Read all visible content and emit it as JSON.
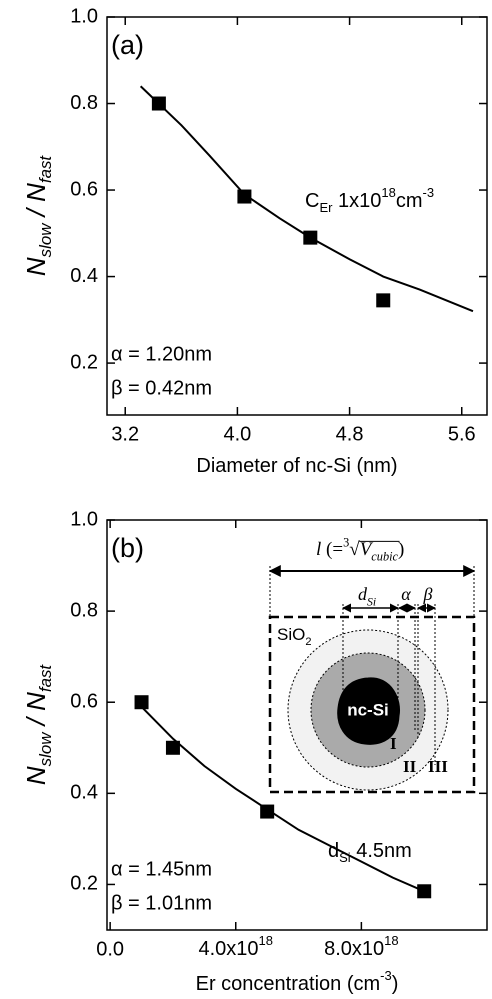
{
  "chart_data": [
    {
      "type": "scatter",
      "panel_label": "(a)",
      "x_label": {
        "text": "Diameter of nc-Si (nm)"
      },
      "y_label": {
        "base": "N",
        "sub": "slow",
        "mid": " / N",
        "sub2": "fast"
      },
      "x": [
        3.44,
        4.05,
        4.52,
        5.04
      ],
      "values": [
        0.8,
        0.585,
        0.49,
        0.345
      ],
      "color": "#000000",
      "fit": {
        "x": [
          3.31,
          3.6,
          3.8,
          4.05,
          4.3,
          4.52,
          4.8,
          5.04,
          5.3,
          5.68
        ],
        "values": [
          0.84,
          0.75,
          0.68,
          0.59,
          0.535,
          0.49,
          0.44,
          0.4,
          0.37,
          0.32
        ]
      },
      "xlim": [
        3.07,
        5.78
      ],
      "xticks": [
        3.2,
        {
          "value": 4,
          "label": "4.0"
        },
        4.8,
        5.6
      ],
      "ylim": [
        0.08,
        1.0
      ],
      "yticks": [
        0.2,
        0.4,
        0.6,
        0.8,
        {
          "value": 1,
          "label": "1.0"
        }
      ],
      "annotations": {
        "alpha": "α = 1.20nm",
        "beta": "β = 0.42nm",
        "conc": {
          "c": "C",
          "er": "Er",
          "num": " 1x10",
          "exp": "18",
          "unit": "cm",
          "uexp": "-3"
        }
      }
    },
    {
      "type": "scatter",
      "panel_label": "(b)",
      "x_label": {
        "text": "Er concentration (cm",
        "sup": "-3",
        "end": ")"
      },
      "y_label": {
        "base": "N",
        "sub": "slow",
        "mid": " / N",
        "sub2": "fast"
      },
      "x": [
        1e+18,
        2e+18,
        5e+18,
        1e+19
      ],
      "values": [
        0.6,
        0.5,
        0.36,
        0.185
      ],
      "color": "#000000",
      "fit": {
        "x": [
          1e+18,
          2e+18,
          3e+18,
          4e+18,
          5e+18,
          6e+18,
          7e+18,
          8e+18,
          9e+18,
          1e+19
        ],
        "values": [
          0.59,
          0.52,
          0.46,
          0.41,
          0.365,
          0.32,
          0.285,
          0.25,
          0.215,
          0.185
        ]
      },
      "xlim": [
        -1e+17,
        1.2e+19
      ],
      "xticks": [
        {
          "value": 0,
          "label": "0.0"
        },
        {
          "value": 4e+18,
          "label": "4.0x10",
          "exponent": "18"
        },
        {
          "value": 8e+18,
          "label": "8.0x10",
          "exponent": "18"
        }
      ],
      "ylim": [
        0.1,
        1.0
      ],
      "yticks": [
        0.2,
        0.4,
        0.6,
        0.8,
        {
          "value": 1,
          "label": "1.0"
        }
      ],
      "annotations": {
        "alpha": "α = 1.45nm",
        "beta": "β = 1.01nm",
        "dsi": {
          "d": "d",
          "si": "Si",
          "val": " 4.5nm"
        }
      },
      "inset": {
        "l": {
          "l": "l",
          "eq": " (=",
          "root": "3",
          "rad": "√",
          "v": "V",
          "sub": "cubic",
          "close": ")"
        },
        "d": {
          "d": "d",
          "si": "Si"
        },
        "alpha": "α",
        "beta": "β",
        "sio2": {
          "base": "SiO",
          "sub": "2"
        },
        "core": "nc-Si",
        "r1": "I",
        "r2": "II",
        "r3": "III"
      }
    }
  ]
}
